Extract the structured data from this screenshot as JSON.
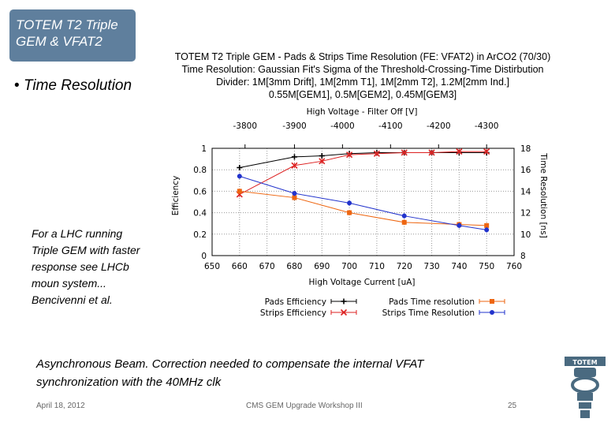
{
  "slide": {
    "title": "TOTEM T2 Triple GEM & VFAT2",
    "bullet": "Time Resolution",
    "bullet_marker": "•",
    "side_note": "For a LHC running Triple GEM with faster response see LHCb moun system... Bencivenni et al.",
    "bottom_note_line1": "Asynchronous Beam. Correction needed to compensate the internal VFAT",
    "bottom_note_line2": "synchronization with the 40MHz clk",
    "footer_date": "April 18, 2012",
    "footer_workshop": "CMS GEM Upgrade Workshop III",
    "footer_page": "25",
    "logo_text": "TOTEM",
    "accent_color": "#5f7f9d"
  },
  "chart_data": {
    "type": "line",
    "title_lines": [
      "TOTEM T2 Triple GEM - Pads & Strips Time Resolution (FE: VFAT2) in ArCO2 (70/30)",
      "Time Resolution: Gaussian Fit's Sigma of the Threshold-Crossing-Time Distirbution",
      "Divider: 1M[3mm Drift], 1M[2mm T1], 1M[2mm T2], 1.2M[2mm Ind.]",
      "0.55M[GEM1], 0.5M[GEM2], 0.45M[GEM3]"
    ],
    "xlabel": "High Voltage Current [uA]",
    "x2label": "High Voltage - Filter Off [V]",
    "ylabel": "Efficiency",
    "y2label": "Time Resolution [ns]",
    "xlim": [
      650,
      760
    ],
    "ylim": [
      0,
      1
    ],
    "y2lim": [
      8,
      18
    ],
    "x_ticks": [
      "650",
      "660",
      "670",
      "680",
      "690",
      "700",
      "710",
      "720",
      "730",
      "740",
      "750",
      "760"
    ],
    "x_tick_values": [
      650,
      660,
      670,
      680,
      690,
      700,
      710,
      720,
      730,
      740,
      750,
      760
    ],
    "y_ticks": [
      "0",
      "0.2",
      "0.4",
      "0.6",
      "0.8",
      "1"
    ],
    "y_tick_values": [
      0,
      0.2,
      0.4,
      0.6,
      0.8,
      1
    ],
    "y2_ticks": [
      "8",
      "10",
      "12",
      "14",
      "16",
      "18"
    ],
    "y2_tick_values": [
      8,
      10,
      12,
      14,
      16,
      18
    ],
    "x2_ticks": [
      "-3800",
      "-3900",
      "-4000",
      "-4100",
      "-4200",
      "-4300"
    ],
    "x2_tick_values": [
      662,
      680,
      697.5,
      715,
      732.5,
      750
    ],
    "series": [
      {
        "name": "Pads Efficiency",
        "axis": "left",
        "color": "#000000",
        "marker": "plus",
        "x": [
          660,
          680,
          690,
          700,
          710,
          720,
          730,
          740,
          750
        ],
        "y": [
          0.82,
          0.92,
          0.93,
          0.95,
          0.96,
          0.96,
          0.96,
          0.96,
          0.96
        ]
      },
      {
        "name": "Strips Efficiency",
        "axis": "left",
        "color": "#dd2222",
        "marker": "x",
        "x": [
          660,
          680,
          690,
          700,
          710,
          720,
          730,
          740,
          750
        ],
        "y": [
          0.57,
          0.84,
          0.88,
          0.94,
          0.95,
          0.96,
          0.96,
          0.97,
          0.97
        ]
      },
      {
        "name": "Pads Time resolution",
        "axis": "right",
        "color": "#ee6611",
        "marker": "square",
        "x": [
          660,
          680,
          700,
          720,
          740,
          750
        ],
        "y": [
          14.0,
          13.4,
          12.0,
          11.1,
          10.9,
          10.8
        ]
      },
      {
        "name": "Strips Time Resolution",
        "axis": "right",
        "color": "#2233cc",
        "marker": "circle",
        "x": [
          660,
          680,
          700,
          720,
          740,
          750
        ],
        "y": [
          15.4,
          13.8,
          12.9,
          11.7,
          10.8,
          10.4
        ]
      }
    ],
    "legend_position": "bottom"
  }
}
